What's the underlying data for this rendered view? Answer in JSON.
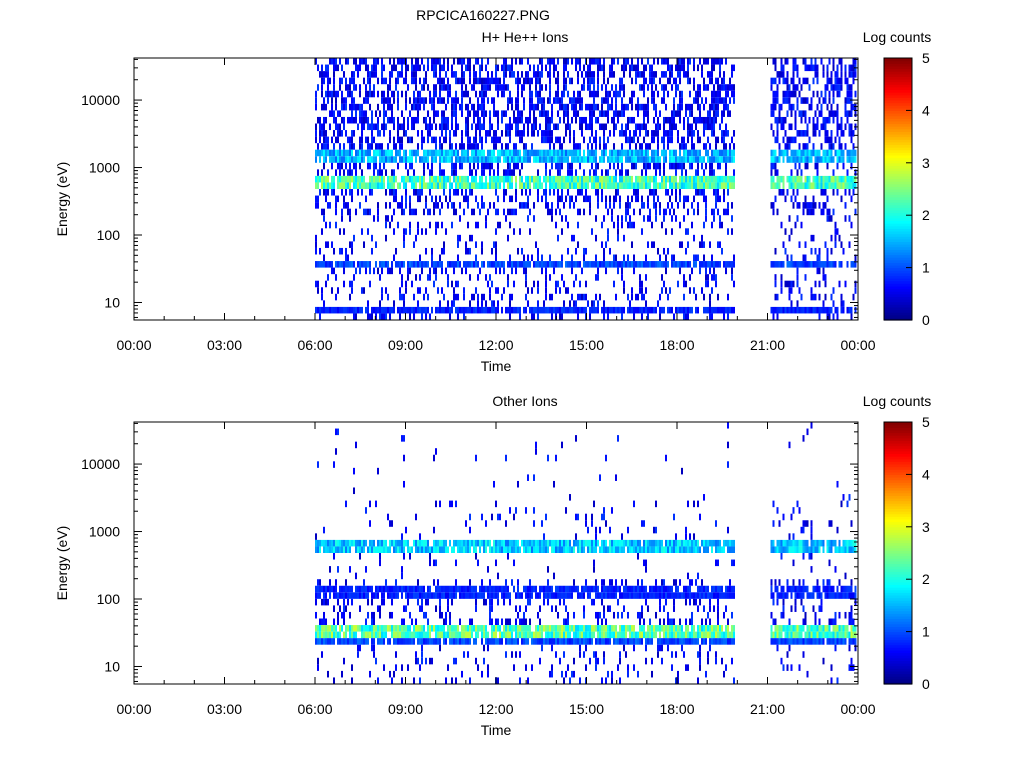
{
  "figure": {
    "title": "RPCICA160227.PNG"
  },
  "chart_data": [
    {
      "type": "heatmap",
      "title": "H+ He++ Ions",
      "xlabel": "Time",
      "ylabel": "Energy (eV)",
      "x_ticks": [
        "00:00",
        "03:00",
        "06:00",
        "09:00",
        "12:00",
        "15:00",
        "18:00",
        "21:00",
        "00:00"
      ],
      "x_range_hours": [
        0,
        24
      ],
      "y_scale": "log",
      "y_range": [
        5.5,
        42000
      ],
      "y_ticks": [
        {
          "value": 10,
          "label": "10"
        },
        {
          "value": 100,
          "label": "100"
        },
        {
          "value": 1000,
          "label": "1000"
        },
        {
          "value": 10000,
          "label": "10000"
        }
      ],
      "data_intervals_hours": [
        [
          6.0,
          19.9
        ],
        [
          21.1,
          23.95
        ]
      ],
      "bands": [
        {
          "energy_ev": 600,
          "level": 2.3
        },
        {
          "energy_ev": 1500,
          "level": 1.6
        },
        {
          "energy_ev": 35,
          "level": 1.0
        },
        {
          "energy_ev": 8,
          "level": 0.8
        }
      ],
      "colorbar": {
        "label": "Log counts",
        "min": 0,
        "max": 5,
        "ticks": [
          "0",
          "1",
          "2",
          "3",
          "4",
          "5"
        ]
      }
    },
    {
      "type": "heatmap",
      "title": "Other Ions",
      "xlabel": "Time",
      "ylabel": "Energy (eV)",
      "x_ticks": [
        "00:00",
        "03:00",
        "06:00",
        "09:00",
        "12:00",
        "15:00",
        "18:00",
        "21:00",
        "00:00"
      ],
      "x_range_hours": [
        0,
        24
      ],
      "y_scale": "log",
      "y_range": [
        5.5,
        42000
      ],
      "y_ticks": [
        {
          "value": 10,
          "label": "10"
        },
        {
          "value": 100,
          "label": "100"
        },
        {
          "value": 1000,
          "label": "1000"
        },
        {
          "value": 10000,
          "label": "10000"
        }
      ],
      "data_intervals_hours": [
        [
          6.0,
          19.9
        ],
        [
          21.1,
          23.95
        ]
      ],
      "bands": [
        {
          "energy_ev": 32,
          "level": 2.4
        },
        {
          "energy_ev": 24,
          "level": 1.0
        },
        {
          "energy_ev": 600,
          "level": 1.7
        },
        {
          "energy_ev": 130,
          "level": 0.8
        }
      ],
      "colorbar": {
        "label": "Log counts",
        "min": 0,
        "max": 5,
        "ticks": [
          "0",
          "1",
          "2",
          "3",
          "4",
          "5"
        ]
      }
    }
  ],
  "colors": {
    "axis": "#000000",
    "background": "#ffffff",
    "colormap": [
      "#00008f",
      "#0000ff",
      "#00ffff",
      "#ffff00",
      "#ff0000",
      "#800000"
    ]
  }
}
